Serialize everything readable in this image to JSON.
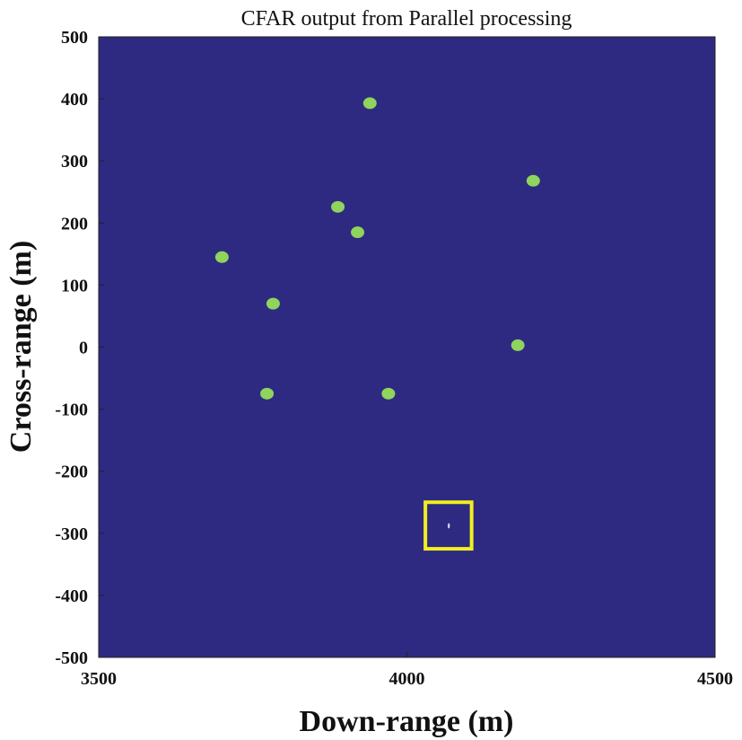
{
  "chart_data": {
    "type": "scatter",
    "title": "CFAR output from Parallel processing",
    "xlabel": "Down-range (m)",
    "ylabel": "Cross-range (m)",
    "xlim": [
      3500,
      4500
    ],
    "ylim": [
      -500,
      500
    ],
    "x_ticks": [
      "3500",
      "4000",
      "4500"
    ],
    "y_ticks": [
      "500",
      "400",
      "300",
      "200",
      "100",
      "0",
      "-100",
      "-200",
      "-300",
      "-400",
      "-500"
    ],
    "grid": false,
    "legend": "none",
    "background_color": "#2e2a82",
    "point_color": "#8fd45c",
    "highlight_color": "#f2ee1e",
    "series": [
      {
        "points": [
          {
            "x": 3940,
            "y": 393
          },
          {
            "x": 4205,
            "y": 268
          },
          {
            "x": 3888,
            "y": 226
          },
          {
            "x": 3920,
            "y": 185
          },
          {
            "x": 3700,
            "y": 145
          },
          {
            "x": 3783,
            "y": 70
          },
          {
            "x": 4180,
            "y": 3
          },
          {
            "x": 3773,
            "y": -75
          },
          {
            "x": 3970,
            "y": -75
          }
        ]
      }
    ],
    "highlight_box": {
      "x_range": [
        4030,
        4105
      ],
      "y_range": [
        -325,
        -250
      ]
    },
    "faint_point": {
      "x": 4068,
      "y": -288
    }
  }
}
